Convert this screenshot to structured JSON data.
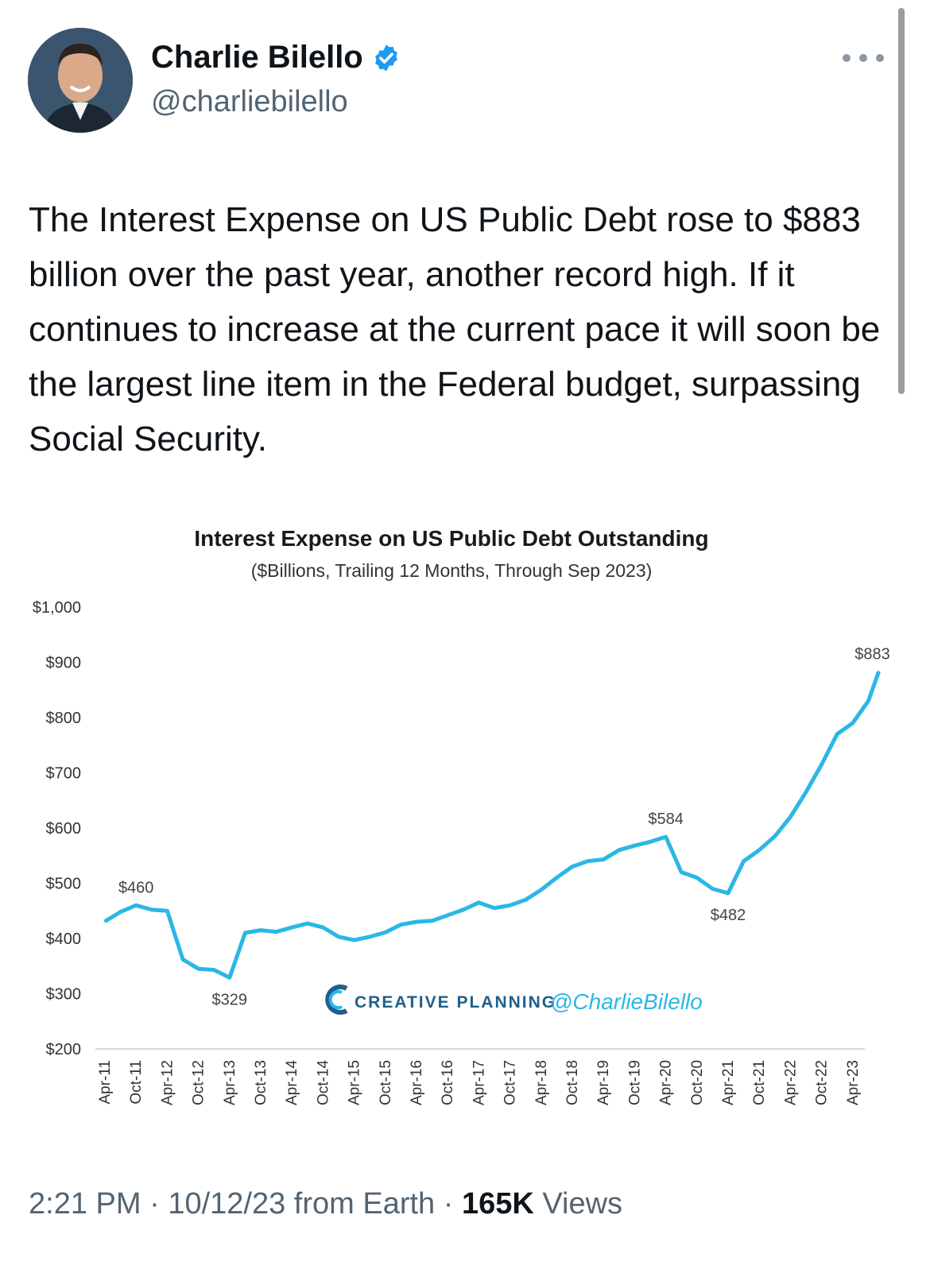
{
  "author": {
    "name": "Charlie Bilello",
    "handle": "@charliebilello",
    "verified": true,
    "verified_color": "#1d9bf0"
  },
  "tweet": {
    "text": "The Interest Expense on US Public Debt rose to $883 billion over the past year, another record high. If it continues to increase at the current pace it will soon be the largest line item in the Federal budget, surpassing Social Security."
  },
  "footer": {
    "time": "2:21 PM",
    "date": "10/12/23",
    "source": "from Earth",
    "views_count": "165K",
    "views_label": "Views",
    "separator": "·"
  },
  "chart_data": {
    "type": "line",
    "title": "Interest Expense on US Public Debt Outstanding",
    "subtitle": "($Billions, Trailing 12 Months, Through Sep 2023)",
    "line_color": "#2bb7e6",
    "grid": false,
    "y_ticks": [
      "$1,000",
      "$900",
      "$800",
      "$700",
      "$600",
      "$500",
      "$400",
      "$300",
      "$200"
    ],
    "ylim": [
      200,
      1000
    ],
    "x_ticks": [
      "Apr-11",
      "Oct-11",
      "Apr-12",
      "Oct-12",
      "Apr-13",
      "Oct-13",
      "Apr-14",
      "Oct-14",
      "Apr-15",
      "Oct-15",
      "Apr-16",
      "Oct-16",
      "Apr-17",
      "Oct-17",
      "Apr-18",
      "Oct-18",
      "Apr-19",
      "Oct-19",
      "Apr-20",
      "Oct-20",
      "Apr-21",
      "Oct-21",
      "Apr-22",
      "Oct-22",
      "Apr-23"
    ],
    "x": [
      "Apr-11",
      "Jul-11",
      "Oct-11",
      "Jan-12",
      "Apr-12",
      "Jul-12",
      "Oct-12",
      "Jan-13",
      "Apr-13",
      "Jul-13",
      "Oct-13",
      "Jan-14",
      "Apr-14",
      "Jul-14",
      "Oct-14",
      "Jan-15",
      "Apr-15",
      "Jul-15",
      "Oct-15",
      "Jan-16",
      "Apr-16",
      "Jul-16",
      "Oct-16",
      "Jan-17",
      "Apr-17",
      "Jul-17",
      "Oct-17",
      "Jan-18",
      "Apr-18",
      "Jul-18",
      "Oct-18",
      "Jan-19",
      "Apr-19",
      "Jul-19",
      "Oct-19",
      "Jan-20",
      "Apr-20",
      "Jul-20",
      "Oct-20",
      "Jan-21",
      "Apr-21",
      "Jul-21",
      "Oct-21",
      "Jan-22",
      "Apr-22",
      "Jul-22",
      "Oct-22",
      "Jan-23",
      "Apr-23",
      "Jul-23",
      "Sep-23"
    ],
    "series": [
      {
        "values": [
          431,
          448,
          460,
          452,
          450,
          362,
          345,
          343,
          329,
          410,
          415,
          412,
          420,
          427,
          420,
          403,
          397,
          403,
          411,
          425,
          430,
          432,
          442,
          452,
          465,
          455,
          460,
          470,
          488,
          510,
          530,
          540,
          543,
          560,
          568,
          575,
          584,
          520,
          510,
          490,
          482,
          540,
          560,
          585,
          620,
          665,
          715,
          770,
          790,
          830,
          883
        ]
      }
    ],
    "annotations": [
      {
        "label": "$460",
        "x": "Oct-11",
        "value": 460
      },
      {
        "label": "$329",
        "x": "Apr-13",
        "value": 329
      },
      {
        "label": "$584",
        "x": "Apr-20",
        "value": 584
      },
      {
        "label": "$482",
        "x": "Apr-21",
        "value": 482
      },
      {
        "label": "$883",
        "x": "Sep-23",
        "value": 883
      }
    ],
    "watermark": {
      "brand": "CREATIVE PLANNING",
      "handle": "@CharlieBilello",
      "brand_color": "#1f5f8b",
      "handle_color": "#2bb7e6"
    }
  }
}
